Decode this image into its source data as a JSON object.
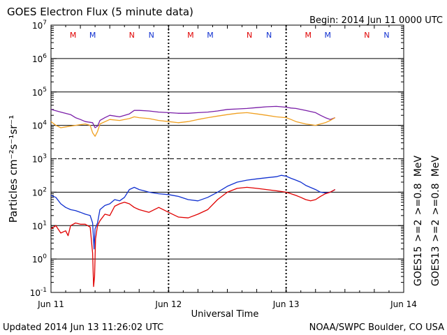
{
  "chart_data": {
    "type": "line",
    "title": "GOES Electron Flux (5 minute data)",
    "begin_label": "Begin: 2014 Jun 11 0000 UTC",
    "xlabel": "Universal Time",
    "ylabel": "Particles cm⁻²s⁻¹sr⁻¹",
    "updated": "Updated 2014 Jun 13 11:26:02 UTC",
    "source": "NOAA/SWPC Boulder, CO USA",
    "yscale": "log",
    "ylim": [
      0.1,
      10000000
    ],
    "xlim": [
      0,
      72
    ],
    "x_units": "hours since 2014 Jun 11 0000 UTC",
    "x_ticks": [
      {
        "x": 0,
        "label": "Jun 11"
      },
      {
        "x": 24,
        "label": "Jun 12"
      },
      {
        "x": 48,
        "label": "Jun 13"
      },
      {
        "x": 72,
        "label": "Jun 14"
      }
    ],
    "y_ticks": [
      {
        "exp": 7,
        "base": "10",
        "sup": "7"
      },
      {
        "exp": 6,
        "base": "10",
        "sup": "6"
      },
      {
        "exp": 5,
        "base": "10",
        "sup": "5"
      },
      {
        "exp": 4,
        "base": "10",
        "sup": "4"
      },
      {
        "exp": 3,
        "base": "10",
        "sup": "3"
      },
      {
        "exp": 2,
        "base": "10",
        "sup": "2"
      },
      {
        "exp": 1,
        "base": "10",
        "sup": "1"
      },
      {
        "exp": 0,
        "base": "10",
        "sup": "0"
      },
      {
        "exp": -1,
        "base": "10",
        "sup": "-1"
      }
    ],
    "dashed_level_exp": 3,
    "markers": [
      {
        "x": 4.5,
        "label": "M",
        "color": "#e00000"
      },
      {
        "x": 8.5,
        "label": "M",
        "color": "#1030d0"
      },
      {
        "x": 16.5,
        "label": "N",
        "color": "#e00000"
      },
      {
        "x": 20.5,
        "label": "N",
        "color": "#1030d0"
      },
      {
        "x": 28.5,
        "label": "M",
        "color": "#e00000"
      },
      {
        "x": 32.5,
        "label": "M",
        "color": "#1030d0"
      },
      {
        "x": 40.5,
        "label": "N",
        "color": "#e00000"
      },
      {
        "x": 44.5,
        "label": "N",
        "color": "#1030d0"
      },
      {
        "x": 52.5,
        "label": "M",
        "color": "#e00000"
      },
      {
        "x": 56.5,
        "label": "M",
        "color": "#1030d0"
      },
      {
        "x": 64.5,
        "label": "N",
        "color": "#e00000"
      },
      {
        "x": 68.5,
        "label": "N",
        "color": "#1030d0"
      }
    ],
    "legend_left": [
      {
        "text": "GOES15",
        "color": "#000000"
      },
      {
        "text": ">=2",
        "color": "#1030d0"
      },
      {
        "text": ">=0.8",
        "color": "#7a1ea8"
      },
      {
        "text": "MeV",
        "color": "#000000"
      }
    ],
    "legend_right": [
      {
        "text": "GOES13",
        "color": "#000000"
      },
      {
        "text": ">=2",
        "color": "#e00000"
      },
      {
        "text": ">=0.8",
        "color": "#f0a020"
      },
      {
        "text": "MeV",
        "color": "#000000"
      }
    ],
    "series": [
      {
        "name": "GOES15 >=0.8 MeV",
        "color": "#7a1ea8",
        "x": [
          0,
          2,
          4,
          5,
          6,
          7,
          8.5,
          9,
          9.5,
          10,
          11,
          12,
          14,
          16,
          17,
          18,
          20,
          22,
          24,
          26,
          28,
          30,
          32,
          34,
          36,
          38,
          40,
          42,
          44,
          46,
          47,
          48,
          49,
          50,
          52,
          54,
          55,
          56,
          57,
          58
        ],
        "y": [
          30000,
          25000,
          21000,
          17000,
          15000,
          13000,
          12000,
          8500,
          9500,
          14000,
          17000,
          20000,
          18000,
          22000,
          28000,
          28000,
          27000,
          25000,
          24000,
          23000,
          23000,
          24000,
          25000,
          27000,
          30000,
          31000,
          32000,
          34000,
          36000,
          37000,
          36000,
          35000,
          33000,
          32000,
          28000,
          24000,
          20000,
          17000,
          15000,
          17000
        ]
      },
      {
        "name": "GOES13 >=0.8 MeV",
        "color": "#f0a020",
        "x": [
          0,
          1,
          2,
          3,
          5,
          7,
          8,
          8.5,
          9,
          9.5,
          10,
          12,
          14,
          16,
          17,
          18,
          20,
          22,
          24,
          26,
          28,
          30,
          32,
          34,
          36,
          38,
          40,
          42,
          44,
          46,
          48,
          49,
          50,
          52,
          54,
          55,
          56,
          57,
          58
        ],
        "y": [
          13000,
          10000,
          8500,
          9000,
          10000,
          11000,
          10000,
          6000,
          4700,
          6500,
          11000,
          15000,
          14000,
          16000,
          18000,
          17000,
          16000,
          14000,
          13000,
          12000,
          13000,
          15000,
          17000,
          19000,
          21000,
          23000,
          24000,
          22000,
          20000,
          18000,
          17000,
          15000,
          13000,
          11000,
          10000,
          11000,
          12000,
          14000,
          17000
        ]
      },
      {
        "name": "GOES15 >=2 MeV",
        "color": "#1030d0",
        "x": [
          0,
          1,
          2,
          3,
          4,
          5,
          6,
          7,
          8,
          8.5,
          8.8,
          9,
          9.5,
          10,
          11,
          12,
          13,
          14,
          15,
          16,
          17,
          18,
          19,
          20,
          22,
          24,
          26,
          28,
          30,
          32,
          34,
          36,
          38,
          40,
          42,
          44,
          46,
          47,
          48,
          49,
          50,
          51,
          52,
          54,
          55,
          56,
          57,
          58
        ],
        "y": [
          80,
          70,
          45,
          35,
          30,
          28,
          25,
          22,
          20,
          12,
          2,
          8,
          12,
          30,
          40,
          45,
          60,
          55,
          70,
          120,
          140,
          120,
          110,
          100,
          90,
          85,
          75,
          60,
          55,
          70,
          100,
          150,
          200,
          230,
          250,
          270,
          290,
          320,
          300,
          260,
          230,
          200,
          160,
          120,
          100,
          95,
          100,
          120
        ]
      },
      {
        "name": "GOES13 >=2 MeV",
        "color": "#e00000",
        "x": [
          0,
          1,
          2,
          3,
          3.5,
          4,
          5,
          6,
          7,
          8,
          8.5,
          8.7,
          8.9,
          9.1,
          9.5,
          10,
          11,
          12,
          13,
          14,
          15,
          16,
          17,
          18,
          20,
          22,
          24,
          26,
          28,
          30,
          32,
          34,
          36,
          38,
          40,
          42,
          44,
          46,
          48,
          49,
          50,
          51,
          52,
          53,
          54,
          55,
          56,
          57,
          58
        ],
        "y": [
          8,
          10,
          6,
          7,
          5,
          10,
          12,
          11,
          11,
          9,
          1.5,
          0.15,
          0.3,
          4,
          10,
          14,
          22,
          20,
          38,
          45,
          50,
          45,
          35,
          30,
          25,
          35,
          25,
          18,
          17,
          22,
          30,
          60,
          100,
          130,
          140,
          130,
          120,
          110,
          100,
          90,
          80,
          70,
          60,
          55,
          60,
          75,
          90,
          100,
          120
        ]
      }
    ]
  }
}
